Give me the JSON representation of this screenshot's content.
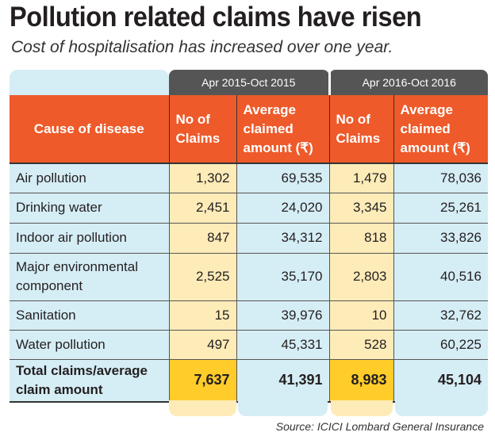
{
  "title": "Pollution related claims have risen",
  "subtitle": "Cost of hospitalisation has increased over one year.",
  "source": "Source: ICICI Lombard General Insurance",
  "colors": {
    "header": "#ee5a2a",
    "group": "#555555",
    "row": "#d5edf5",
    "claims": "#fdebb8",
    "total_claims": "#ffcc29"
  },
  "chart_data": {
    "type": "table",
    "groups": [
      "Apr 2015-Oct 2015",
      "Apr 2016-Oct 2016"
    ],
    "columns": [
      "Cause of disease",
      "No of Claims",
      "Average claimed amount (₹)",
      "No of Claims",
      "Average claimed amount (₹)"
    ],
    "rows": [
      [
        "Air pollution",
        "1,302",
        "69,535",
        "1,479",
        "78,036"
      ],
      [
        "Drinking water",
        "2,451",
        "24,020",
        "3,345",
        "25,261"
      ],
      [
        "Indoor air pollution",
        "847",
        "34,312",
        "818",
        "33,826"
      ],
      [
        "Major environmental component",
        "2,525",
        "35,170",
        "2,803",
        "40,516"
      ],
      [
        "Sanitation",
        "15",
        "39,976",
        "10",
        "32,762"
      ],
      [
        "Water pollution",
        "497",
        "45,331",
        "528",
        "60,225"
      ]
    ],
    "total": [
      "Total claims/average claim amount",
      "7,637",
      "41,391",
      "8,983",
      "45,104"
    ]
  }
}
